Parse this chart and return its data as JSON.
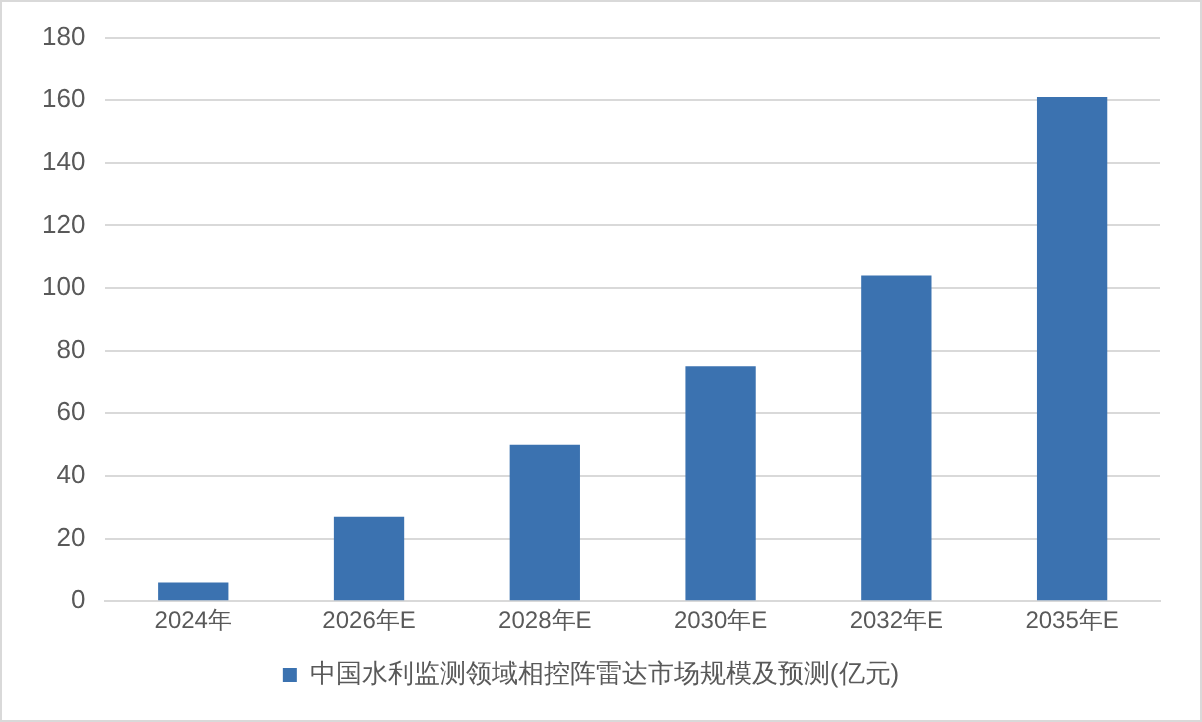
{
  "chart_data": {
    "type": "bar",
    "categories": [
      "2024年",
      "2026年E",
      "2028年E",
      "2030年E",
      "2032年E",
      "2035年E"
    ],
    "series": [
      {
        "name": "中国水利监测领域相控阵雷达市场规模及预测(亿元)",
        "color": "#3b72b0",
        "values": [
          6,
          27,
          50,
          75,
          104,
          161
        ]
      }
    ],
    "ylim": [
      0,
      180
    ],
    "yticks": [
      0,
      20,
      40,
      60,
      80,
      100,
      120,
      140,
      160,
      180
    ],
    "grid": "y",
    "legend": "bottom"
  }
}
